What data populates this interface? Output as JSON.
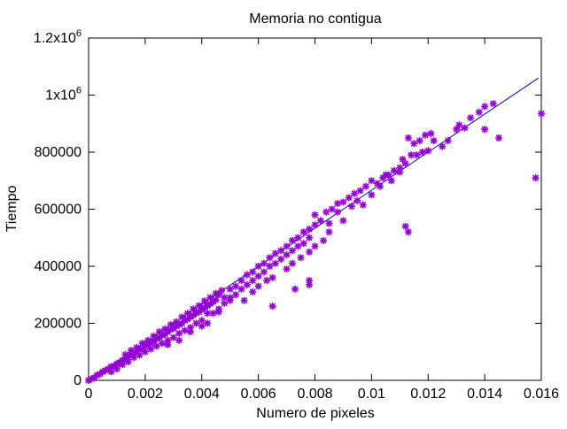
{
  "chart_data": {
    "type": "scatter",
    "title": "Memoria no contigua",
    "xlabel": "Numero de pixeles",
    "ylabel": "Tiempo",
    "xlim": [
      0,
      0.016
    ],
    "ylim": [
      0,
      1200000
    ],
    "grid": false,
    "x_ticks": [
      "0",
      "0.002",
      "0.004",
      "0.006",
      "0.008",
      "0.01",
      "0.012",
      "0.014",
      "0.016"
    ],
    "y_ticks": [
      {
        "value": 0,
        "base": "0",
        "exp": ""
      },
      {
        "value": 200000,
        "base": "200000",
        "exp": ""
      },
      {
        "value": 400000,
        "base": "400000",
        "exp": ""
      },
      {
        "value": 600000,
        "base": "600000",
        "exp": ""
      },
      {
        "value": 800000,
        "base": "800000",
        "exp": ""
      },
      {
        "value": 1000000,
        "base": "1x10",
        "exp": "6"
      },
      {
        "value": 1200000,
        "base": "1.2x10",
        "exp": "6"
      }
    ],
    "series": [
      {
        "type": "scatter",
        "color": "#9400d3",
        "marker": "star",
        "points": [
          [
            0.0,
            0
          ],
          [
            0.0001,
            5000
          ],
          [
            0.0002,
            10000
          ],
          [
            0.0003,
            18000
          ],
          [
            0.0004,
            22000
          ],
          [
            0.0005,
            30000
          ],
          [
            0.0006,
            35000
          ],
          [
            0.0007,
            40000
          ],
          [
            0.0008,
            48000
          ],
          [
            0.0009,
            50000
          ],
          [
            0.001,
            58000
          ],
          [
            0.0011,
            62000
          ],
          [
            0.0012,
            70000
          ],
          [
            0.0013,
            75000
          ],
          [
            0.0014,
            80000
          ],
          [
            0.0015,
            90000
          ],
          [
            0.0016,
            95000
          ],
          [
            0.0017,
            100000
          ],
          [
            0.0018,
            108000
          ],
          [
            0.0019,
            112000
          ],
          [
            0.002,
            120000
          ],
          [
            0.0021,
            125000
          ],
          [
            0.0022,
            130000
          ],
          [
            0.0023,
            138000
          ],
          [
            0.0024,
            145000
          ],
          [
            0.0025,
            150000
          ],
          [
            0.0026,
            158000
          ],
          [
            0.0027,
            162000
          ],
          [
            0.0028,
            170000
          ],
          [
            0.0029,
            178000
          ],
          [
            0.003,
            182000
          ],
          [
            0.0031,
            190000
          ],
          [
            0.0032,
            195000
          ],
          [
            0.0033,
            200000
          ],
          [
            0.0034,
            210000
          ],
          [
            0.0035,
            215000
          ],
          [
            0.0036,
            222000
          ],
          [
            0.0037,
            228000
          ],
          [
            0.0038,
            235000
          ],
          [
            0.0039,
            240000
          ],
          [
            0.004,
            248000
          ],
          [
            0.0041,
            255000
          ],
          [
            0.0042,
            262000
          ],
          [
            0.0043,
            268000
          ],
          [
            0.0044,
            275000
          ],
          [
            0.0045,
            282000
          ],
          [
            0.0008,
            30000
          ],
          [
            0.001,
            40000
          ],
          [
            0.0012,
            55000
          ],
          [
            0.0014,
            65000
          ],
          [
            0.0016,
            80000
          ],
          [
            0.0018,
            88000
          ],
          [
            0.002,
            100000
          ],
          [
            0.0022,
            110000
          ],
          [
            0.0024,
            120000
          ],
          [
            0.0026,
            130000
          ],
          [
            0.0028,
            140000
          ],
          [
            0.003,
            150000
          ],
          [
            0.0032,
            165000
          ],
          [
            0.0034,
            175000
          ],
          [
            0.0036,
            185000
          ],
          [
            0.0038,
            200000
          ],
          [
            0.004,
            210000
          ],
          [
            0.0013,
            90000
          ],
          [
            0.0015,
            105000
          ],
          [
            0.0017,
            115000
          ],
          [
            0.0019,
            130000
          ],
          [
            0.0021,
            140000
          ],
          [
            0.0023,
            155000
          ],
          [
            0.0025,
            170000
          ],
          [
            0.0027,
            180000
          ],
          [
            0.0029,
            195000
          ],
          [
            0.0031,
            205000
          ],
          [
            0.0033,
            222000
          ],
          [
            0.0035,
            235000
          ],
          [
            0.0037,
            250000
          ],
          [
            0.0039,
            262000
          ],
          [
            0.0041,
            278000
          ],
          [
            0.0043,
            290000
          ],
          [
            0.0045,
            305000
          ],
          [
            0.0047,
            315000
          ],
          [
            0.0028,
            125000
          ],
          [
            0.0032,
            140000
          ],
          [
            0.0036,
            170000
          ],
          [
            0.004,
            190000
          ],
          [
            0.0044,
            235000
          ],
          [
            0.0042,
            200000
          ],
          [
            0.0046,
            250000
          ],
          [
            0.0048,
            270000
          ],
          [
            0.005,
            290000
          ],
          [
            0.0052,
            300000
          ],
          [
            0.0054,
            320000
          ],
          [
            0.0056,
            335000
          ],
          [
            0.0058,
            350000
          ],
          [
            0.006,
            365000
          ],
          [
            0.0062,
            380000
          ],
          [
            0.0064,
            400000
          ],
          [
            0.0066,
            410000
          ],
          [
            0.0068,
            425000
          ],
          [
            0.007,
            440000
          ],
          [
            0.0072,
            455000
          ],
          [
            0.0074,
            470000
          ],
          [
            0.0076,
            480000
          ],
          [
            0.0078,
            500000
          ],
          [
            0.0046,
            300000
          ],
          [
            0.0048,
            290000
          ],
          [
            0.005,
            320000
          ],
          [
            0.0052,
            330000
          ],
          [
            0.0054,
            350000
          ],
          [
            0.0056,
            370000
          ],
          [
            0.0058,
            380000
          ],
          [
            0.006,
            400000
          ],
          [
            0.0062,
            410000
          ],
          [
            0.0064,
            430000
          ],
          [
            0.0066,
            445000
          ],
          [
            0.0068,
            455000
          ],
          [
            0.007,
            470000
          ],
          [
            0.0072,
            490000
          ],
          [
            0.0074,
            500000
          ],
          [
            0.0076,
            520000
          ],
          [
            0.0078,
            530000
          ],
          [
            0.008,
            545000
          ],
          [
            0.0055,
            280000
          ],
          [
            0.0058,
            310000
          ],
          [
            0.006,
            330000
          ],
          [
            0.0063,
            350000
          ],
          [
            0.0065,
            360000
          ],
          [
            0.007,
            390000
          ],
          [
            0.0072,
            410000
          ],
          [
            0.0075,
            430000
          ],
          [
            0.0078,
            450000
          ],
          [
            0.008,
            470000
          ],
          [
            0.0083,
            490000
          ],
          [
            0.0085,
            520000
          ],
          [
            0.0082,
            560000
          ],
          [
            0.0084,
            590000
          ],
          [
            0.0086,
            600000
          ],
          [
            0.0088,
            620000
          ],
          [
            0.009,
            625000
          ],
          [
            0.0092,
            640000
          ],
          [
            0.0094,
            655000
          ],
          [
            0.0096,
            665000
          ],
          [
            0.0098,
            680000
          ],
          [
            0.01,
            700000
          ],
          [
            0.0102,
            690000
          ],
          [
            0.0104,
            710000
          ],
          [
            0.0106,
            720000
          ],
          [
            0.0108,
            735000
          ],
          [
            0.011,
            745000
          ],
          [
            0.0112,
            760000
          ],
          [
            0.0114,
            790000
          ],
          [
            0.0116,
            790000
          ],
          [
            0.0118,
            800000
          ],
          [
            0.012,
            805000
          ],
          [
            0.008,
            580000
          ],
          [
            0.0085,
            550000
          ],
          [
            0.0088,
            590000
          ],
          [
            0.009,
            560000
          ],
          [
            0.0093,
            610000
          ],
          [
            0.0095,
            630000
          ],
          [
            0.0097,
            615000
          ],
          [
            0.01,
            650000
          ],
          [
            0.0103,
            680000
          ],
          [
            0.0105,
            720000
          ],
          [
            0.0107,
            700000
          ],
          [
            0.011,
            730000
          ],
          [
            0.0111,
            775000
          ],
          [
            0.0113,
            850000
          ],
          [
            0.0115,
            830000
          ],
          [
            0.0117,
            840000
          ],
          [
            0.0119,
            860000
          ],
          [
            0.0121,
            865000
          ],
          [
            0.0122,
            840000
          ],
          [
            0.0125,
            820000
          ],
          [
            0.0127,
            840000
          ],
          [
            0.013,
            880000
          ],
          [
            0.0131,
            895000
          ],
          [
            0.0133,
            885000
          ],
          [
            0.0135,
            920000
          ],
          [
            0.0138,
            940000
          ],
          [
            0.014,
            960000
          ],
          [
            0.0143,
            970000
          ],
          [
            0.014,
            880000
          ],
          [
            0.0145,
            850000
          ],
          [
            0.0158,
            710000
          ],
          [
            0.016,
            935000
          ],
          [
            0.0065,
            260000
          ],
          [
            0.0073,
            320000
          ],
          [
            0.0078,
            335000
          ],
          [
            0.0078,
            350000
          ],
          [
            0.0113,
            520000
          ],
          [
            0.0112,
            540000
          ],
          [
            0.0042,
            235000
          ],
          [
            0.0046,
            240000
          ],
          [
            0.005,
            280000
          ]
        ]
      },
      {
        "type": "line",
        "color": "#0000cc",
        "fit": [
          [
            0,
            0
          ],
          [
            0.0159,
            1060000
          ]
        ]
      }
    ]
  }
}
